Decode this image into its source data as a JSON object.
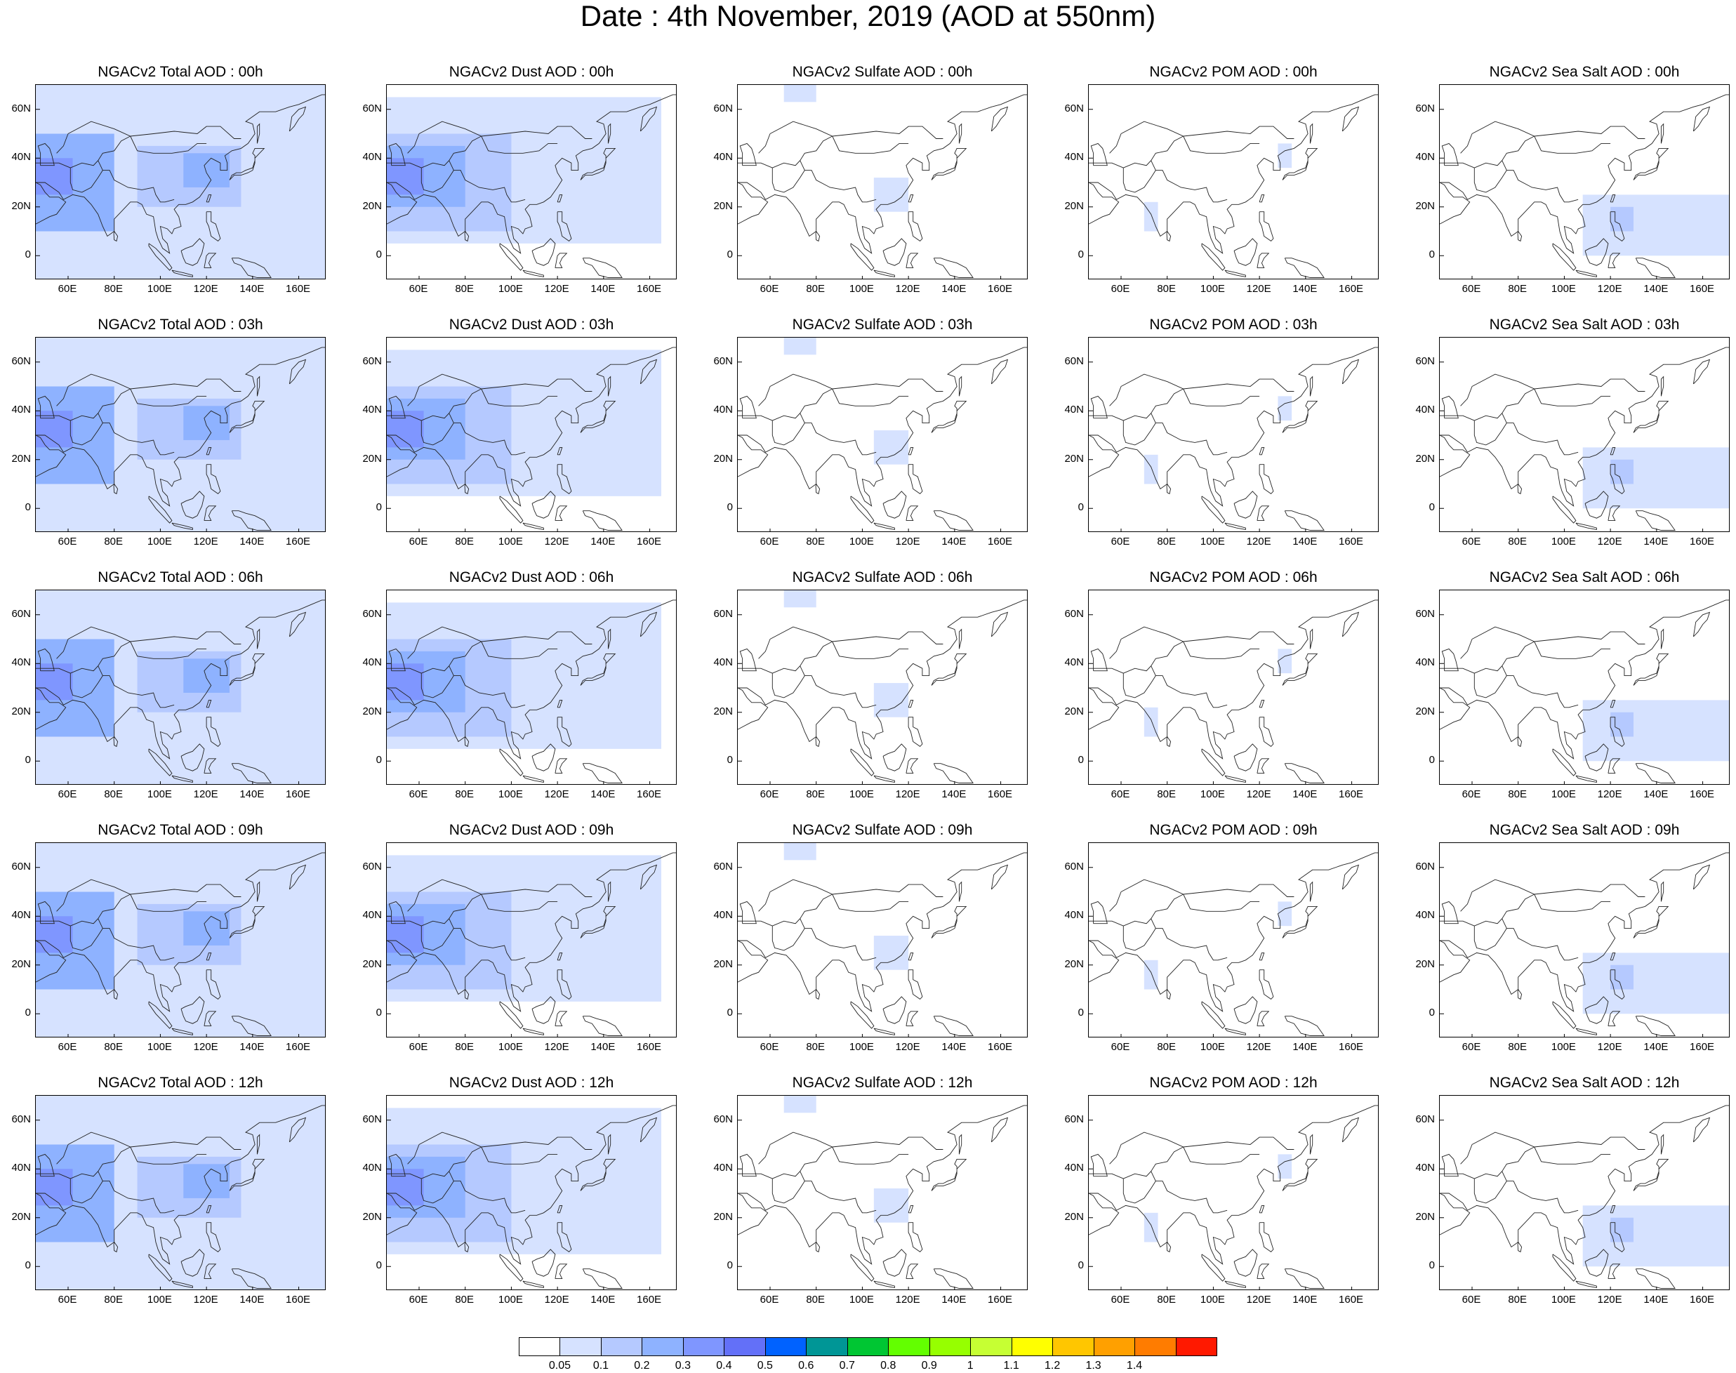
{
  "title": "Date : 4th November, 2019 (AOD at 550nm)",
  "lat_ticks": [
    "60N",
    "40N",
    "20N",
    "0"
  ],
  "lat_values": [
    60,
    40,
    20,
    0
  ],
  "lon_ticks": [
    "60E",
    "80E",
    "100E",
    "120E",
    "140E",
    "160E"
  ],
  "lon_values": [
    60,
    80,
    100,
    120,
    140,
    160
  ],
  "map_extent": {
    "lon": [
      46,
      172
    ],
    "lat": [
      -10,
      70
    ]
  },
  "panels": [
    [
      "NGACv2 Total AOD : 00h",
      "NGACv2 Dust AOD : 00h",
      "NGACv2 Sulfate AOD : 00h",
      "NGACv2 POM AOD : 00h",
      "NGACv2 Sea Salt AOD : 00h"
    ],
    [
      "NGACv2 Total AOD : 03h",
      "NGACv2 Dust AOD : 03h",
      "NGACv2 Sulfate AOD : 03h",
      "NGACv2 POM AOD : 03h",
      "NGACv2 Sea Salt AOD : 03h"
    ],
    [
      "NGACv2 Total AOD : 06h",
      "NGACv2 Dust AOD : 06h",
      "NGACv2 Sulfate AOD : 06h",
      "NGACv2 POM AOD : 06h",
      "NGACv2 Sea Salt AOD : 06h"
    ],
    [
      "NGACv2 Total AOD : 09h",
      "NGACv2 Dust AOD : 09h",
      "NGACv2 Sulfate AOD : 09h",
      "NGACv2 POM AOD : 09h",
      "NGACv2 Sea Salt  AOD : 09h"
    ],
    [
      "NGACv2 Total AOD  : 12h",
      "NGACv2 Dust AOD : 12h",
      "NGACv2 Sulfate AOD : 12h",
      "NGACv2 POM  AOD : 12h",
      "NGACv2 Sea Salt  AOD : 12h"
    ]
  ],
  "colorbar": {
    "labels": [
      "0.05",
      "0.1",
      "0.2",
      "0.3",
      "0.4",
      "0.5",
      "0.6",
      "0.7",
      "0.8",
      "0.9",
      "1",
      "1.1",
      "1.2",
      "1.3",
      "1.4"
    ],
    "colors": [
      "#ffffff",
      "#d6e2ff",
      "#b5c9ff",
      "#8eb2ff",
      "#7f96ff",
      "#6370f8",
      "#0062ff",
      "#009696",
      "#00c633",
      "#63ff00",
      "#96ff00",
      "#c6ff33",
      "#ffff00",
      "#ffc600",
      "#ffa000",
      "#ff7c00",
      "#ff1900"
    ]
  },
  "aod_fields": {
    "total": [
      {
        "lon": [
          46,
          172
        ],
        "lat": [
          -10,
          70
        ],
        "aod": 0.08
      },
      {
        "lon": [
          46,
          80
        ],
        "lat": [
          10,
          50
        ],
        "aod": 0.22
      },
      {
        "lon": [
          46,
          62
        ],
        "lat": [
          25,
          40
        ],
        "aod": 0.32
      },
      {
        "lon": [
          90,
          135
        ],
        "lat": [
          20,
          45
        ],
        "aod": 0.15
      },
      {
        "lon": [
          110,
          130
        ],
        "lat": [
          28,
          42
        ],
        "aod": 0.22
      }
    ],
    "dust": [
      {
        "lon": [
          46,
          165
        ],
        "lat": [
          5,
          65
        ],
        "aod": 0.07
      },
      {
        "lon": [
          46,
          100
        ],
        "lat": [
          10,
          50
        ],
        "aod": 0.15
      },
      {
        "lon": [
          46,
          80
        ],
        "lat": [
          20,
          45
        ],
        "aod": 0.22
      },
      {
        "lon": [
          46,
          62
        ],
        "lat": [
          25,
          40
        ],
        "aod": 0.3
      }
    ],
    "sulfate": [
      {
        "lon": [
          66,
          80
        ],
        "lat": [
          63,
          70
        ],
        "aod": 0.08
      },
      {
        "lon": [
          105,
          120
        ],
        "lat": [
          18,
          32
        ],
        "aod": 0.08
      }
    ],
    "pom": [
      {
        "lon": [
          128,
          134
        ],
        "lat": [
          36,
          46
        ],
        "aod": 0.08
      },
      {
        "lon": [
          70,
          76
        ],
        "lat": [
          10,
          22
        ],
        "aod": 0.07
      }
    ],
    "seasalt": [
      {
        "lon": [
          108,
          172
        ],
        "lat": [
          0,
          25
        ],
        "aod": 0.07
      },
      {
        "lon": [
          120,
          130
        ],
        "lat": [
          10,
          20
        ],
        "aod": 0.15
      }
    ]
  }
}
